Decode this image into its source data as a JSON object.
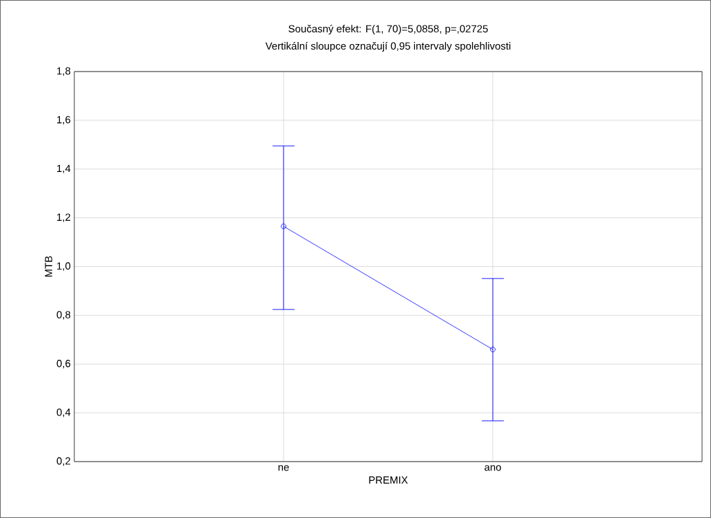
{
  "chart_data": {
    "type": "line",
    "title": "Současný efekt: F(1, 70)=5,0858, p=,02725",
    "subtitle": "Vertikální sloupce označují 0,95 intervaly spolehlivosti",
    "xlabel": "PREMIX",
    "ylabel": "MTB",
    "categories": [
      "ne",
      "ano"
    ],
    "series": [
      {
        "color": "#0000ff",
        "values": [
          1.165,
          0.66
        ],
        "errors": [
          [
            0.824,
            1.495
          ],
          [
            0.367,
            0.951
          ]
        ]
      }
    ],
    "ylim": [
      0.2,
      1.8
    ],
    "yticks": [
      {
        "value": 0.2,
        "label": "0,2"
      },
      {
        "value": 0.4,
        "label": "0,4"
      },
      {
        "value": 0.6,
        "label": "0,6"
      },
      {
        "value": 0.8,
        "label": "0,8"
      },
      {
        "value": 1.0,
        "label": "1,0"
      },
      {
        "value": 1.2,
        "label": "1,2"
      },
      {
        "value": 1.4,
        "label": "1,4"
      },
      {
        "value": 1.6,
        "label": "1,6"
      },
      {
        "value": 1.8,
        "label": "1,8"
      }
    ],
    "grid": true,
    "marker": "circle",
    "line_style": "solid"
  }
}
